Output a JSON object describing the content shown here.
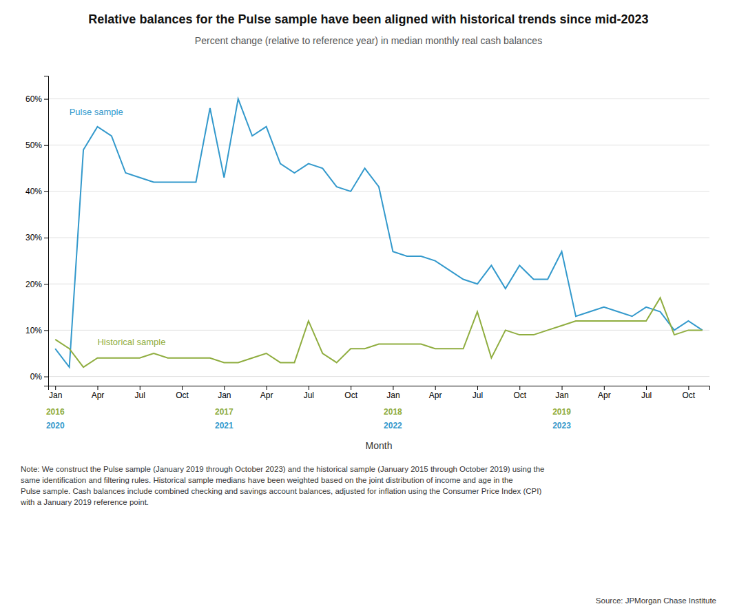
{
  "chart_data": {
    "type": "line",
    "title": "Relative balances for the Pulse sample have been aligned with historical trends since mid-2023",
    "subtitle": "Percent change (relative to reference year) in median monthly real cash balances",
    "xlabel": "Month",
    "note": "Note: We construct the Pulse sample (January 2019 through October 2023) and the historical sample (January 2015 through October 2019) using the\nsame identification and filtering rules. Historical sample medians have been weighted based on the joint distribution of income and age in the\nPulse sample. Cash balances include combined checking and savings account balances, adjusted for inflation using the Consumer Price Index (CPI)\nwith a January 2019 reference point.",
    "source": "Source: JPMorgan Chase Institute",
    "grid": "y",
    "x": [
      0,
      1,
      2,
      3,
      4,
      5,
      6,
      7,
      8,
      9,
      10,
      11,
      12,
      13,
      14,
      15,
      16,
      17,
      18,
      19,
      20,
      21,
      22,
      23,
      24,
      25,
      26,
      27,
      28,
      29,
      30,
      31,
      32,
      33,
      34,
      35,
      36,
      37,
      38,
      39,
      40,
      41,
      42,
      43,
      44,
      45,
      46
    ],
    "xlim": [
      -0.5,
      46.5
    ],
    "xticks": [
      {
        "value": 0,
        "label": "Jan"
      },
      {
        "value": 3,
        "label": "Apr"
      },
      {
        "value": 6,
        "label": "Jul"
      },
      {
        "value": 9,
        "label": "Oct"
      },
      {
        "value": 12,
        "label": "Jan"
      },
      {
        "value": 15,
        "label": "Apr"
      },
      {
        "value": 18,
        "label": "Jul"
      },
      {
        "value": 21,
        "label": "Oct"
      },
      {
        "value": 24,
        "label": "Jan"
      },
      {
        "value": 27,
        "label": "Apr"
      },
      {
        "value": 30,
        "label": "Jul"
      },
      {
        "value": 33,
        "label": "Oct"
      },
      {
        "value": 36,
        "label": "Jan"
      },
      {
        "value": 39,
        "label": "Apr"
      },
      {
        "value": 42,
        "label": "Jul"
      },
      {
        "value": 45,
        "label": "Oct"
      }
    ],
    "ylim": [
      -0.02,
      0.65
    ],
    "yticks": [
      {
        "value": 0.0,
        "label": "0%"
      },
      {
        "value": 0.1,
        "label": "10%"
      },
      {
        "value": 0.2,
        "label": "20%"
      },
      {
        "value": 0.3,
        "label": "30%"
      },
      {
        "value": 0.4,
        "label": "40%"
      },
      {
        "value": 0.5,
        "label": "50%"
      },
      {
        "value": 0.6,
        "label": "60%"
      }
    ],
    "series": [
      {
        "name": "Pulse sample",
        "color": "#3399cc",
        "label_x": 1.0,
        "label_y": 0.565,
        "year_ticks": [
          {
            "value": 0,
            "label": "2020"
          },
          {
            "value": 12,
            "label": "2021"
          },
          {
            "value": 24,
            "label": "2022"
          },
          {
            "value": 36,
            "label": "2023"
          }
        ],
        "values": [
          0.06,
          0.02,
          0.49,
          0.54,
          0.52,
          0.44,
          0.43,
          0.42,
          0.42,
          0.42,
          0.42,
          0.58,
          0.43,
          0.6,
          0.52,
          0.54,
          0.46,
          0.44,
          0.46,
          0.45,
          0.41,
          0.4,
          0.45,
          0.41,
          0.27,
          0.26,
          0.26,
          0.25,
          0.23,
          0.21,
          0.2,
          0.24,
          0.19,
          0.24,
          0.21,
          0.21,
          0.27,
          0.13,
          0.14,
          0.15,
          0.14,
          0.13,
          0.15,
          0.14,
          0.1,
          0.12,
          0.1
        ]
      },
      {
        "name": "Historical sample",
        "color": "#8fad3f",
        "label_x": 3.0,
        "label_y": 0.068,
        "year_ticks": [
          {
            "value": 0,
            "label": "2016"
          },
          {
            "value": 12,
            "label": "2017"
          },
          {
            "value": 24,
            "label": "2018"
          },
          {
            "value": 36,
            "label": "2019"
          }
        ],
        "values": [
          0.08,
          0.06,
          0.02,
          0.04,
          0.04,
          0.04,
          0.04,
          0.05,
          0.04,
          0.04,
          0.04,
          0.04,
          0.03,
          0.03,
          0.04,
          0.05,
          0.03,
          0.03,
          0.12,
          0.05,
          0.03,
          0.06,
          0.06,
          0.07,
          0.07,
          0.07,
          0.07,
          0.06,
          0.06,
          0.06,
          0.14,
          0.04,
          0.1,
          0.09,
          0.09,
          0.1,
          0.11,
          0.12,
          0.12,
          0.12,
          0.12,
          0.12,
          0.12,
          0.17,
          0.09,
          0.1,
          0.1
        ]
      }
    ]
  }
}
